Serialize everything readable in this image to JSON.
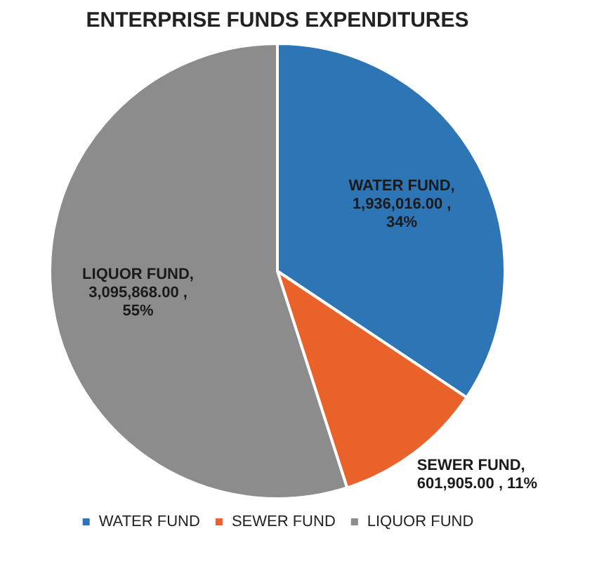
{
  "chart_data": {
    "type": "pie",
    "title": "ENTERPRISE FUNDS EXPENDITURES",
    "categories": [
      "WATER FUND",
      "SEWER FUND",
      "LIQUOR FUND"
    ],
    "values": [
      1936016,
      601905,
      3095868
    ],
    "colors": [
      "#2e75b6",
      "#e8622a",
      "#8c8c8c"
    ],
    "value_labels": [
      "WATER FUND,\n1,936,016.00 ,\n34%",
      "SEWER FUND,\n601,905.00 , 11%",
      "LIQUOR FUND,\n3,095,868.00 ,\n55%"
    ],
    "legend": "bottom"
  }
}
